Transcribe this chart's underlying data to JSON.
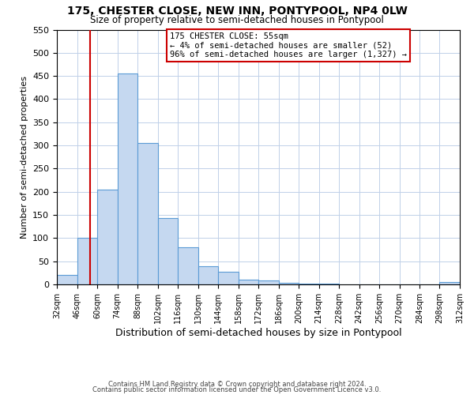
{
  "title": "175, CHESTER CLOSE, NEW INN, PONTYPOOL, NP4 0LW",
  "subtitle": "Size of property relative to semi-detached houses in Pontypool",
  "xlabel": "Distribution of semi-detached houses by size in Pontypool",
  "ylabel": "Number of semi-detached properties",
  "bin_edges": [
    32,
    46,
    60,
    74,
    88,
    102,
    116,
    130,
    144,
    158,
    172,
    186,
    200,
    214,
    228,
    242,
    256,
    270,
    284,
    298,
    312
  ],
  "bar_heights": [
    20,
    100,
    205,
    455,
    305,
    143,
    80,
    40,
    27,
    10,
    8,
    3,
    2,
    1,
    0,
    0,
    0,
    0,
    0,
    5
  ],
  "bar_color": "#c5d8f0",
  "bar_edge_color": "#5b9bd5",
  "vline_x": 55,
  "vline_color": "#cc0000",
  "ylim": [
    0,
    550
  ],
  "yticks": [
    0,
    50,
    100,
    150,
    200,
    250,
    300,
    350,
    400,
    450,
    500,
    550
  ],
  "annotation_title": "175 CHESTER CLOSE: 55sqm",
  "annotation_line1": "← 4% of semi-detached houses are smaller (52)",
  "annotation_line2": "96% of semi-detached houses are larger (1,327) →",
  "annotation_box_color": "#ffffff",
  "annotation_box_edge_color": "#cc0000",
  "footer_line1": "Contains HM Land Registry data © Crown copyright and database right 2024.",
  "footer_line2": "Contains public sector information licensed under the Open Government Licence v3.0.",
  "background_color": "#ffffff",
  "grid_color": "#c0d0e8"
}
